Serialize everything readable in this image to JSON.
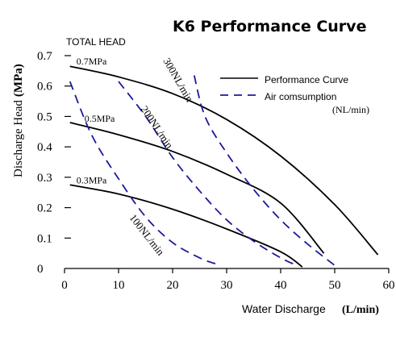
{
  "chart_data": {
    "type": "line",
    "title": "K6 Performance Curve",
    "y_axis_title": "Discharge Head",
    "y_axis_unit": "(MPa)",
    "y_axis_caption": "TOTAL HEAD",
    "x_axis_title": "Water Discharge",
    "x_axis_unit": "(L/min)",
    "xlim": [
      0,
      60
    ],
    "ylim": [
      0,
      0.7
    ],
    "x_ticks": [
      "0",
      "10",
      "20",
      "30",
      "40",
      "50",
      "60"
    ],
    "y_ticks": [
      {
        "v": 0,
        "label": "0"
      },
      {
        "v": 0.1,
        "label": "0.1"
      },
      {
        "v": 0.2,
        "label": "0.2"
      },
      {
        "v": 0.3,
        "label": "0.3"
      },
      {
        "v": 0.4,
        "label": "0.4"
      },
      {
        "v": 0.5,
        "label": "0.5"
      },
      {
        "v": 0.6,
        "label": "0.6"
      },
      {
        "v": 0.7,
        "label": "0.7"
      }
    ],
    "grid": false,
    "legend": {
      "position": "top-right",
      "performance_label": "Performance Curve",
      "air_label": "Air comsumption",
      "air_unit": "(NL/min)"
    },
    "performance_curves": [
      {
        "name": "0.7MPa",
        "points": [
          [
            1,
            0.665
          ],
          [
            10,
            0.63
          ],
          [
            20,
            0.575
          ],
          [
            30,
            0.49
          ],
          [
            40,
            0.37
          ],
          [
            50,
            0.21
          ],
          [
            58,
            0.045
          ]
        ]
      },
      {
        "name": "0.5MPa",
        "points": [
          [
            1,
            0.48
          ],
          [
            10,
            0.44
          ],
          [
            20,
            0.385
          ],
          [
            30,
            0.31
          ],
          [
            40,
            0.215
          ],
          [
            48,
            0.05
          ]
        ]
      },
      {
        "name": "0.3MPa",
        "points": [
          [
            1,
            0.275
          ],
          [
            10,
            0.245
          ],
          [
            20,
            0.195
          ],
          [
            30,
            0.13
          ],
          [
            40,
            0.055
          ],
          [
            44,
            0.005
          ]
        ]
      }
    ],
    "air_consumption_curves": [
      {
        "name": "100NL/min",
        "points": [
          [
            1,
            0.615
          ],
          [
            5,
            0.44
          ],
          [
            10,
            0.295
          ],
          [
            15,
            0.17
          ],
          [
            20,
            0.085
          ],
          [
            25,
            0.035
          ],
          [
            28,
            0.015
          ]
        ]
      },
      {
        "name": "200NL/min",
        "points": [
          [
            10,
            0.615
          ],
          [
            15,
            0.5
          ],
          [
            20,
            0.365
          ],
          [
            25,
            0.255
          ],
          [
            30,
            0.16
          ],
          [
            35,
            0.09
          ],
          [
            40,
            0.035
          ],
          [
            43,
            0.01
          ]
        ]
      },
      {
        "name": "300NL/min",
        "points": [
          [
            24,
            0.635
          ],
          [
            26,
            0.5
          ],
          [
            30,
            0.38
          ],
          [
            35,
            0.26
          ],
          [
            40,
            0.16
          ],
          [
            45,
            0.08
          ],
          [
            50,
            0.01
          ]
        ]
      }
    ]
  }
}
